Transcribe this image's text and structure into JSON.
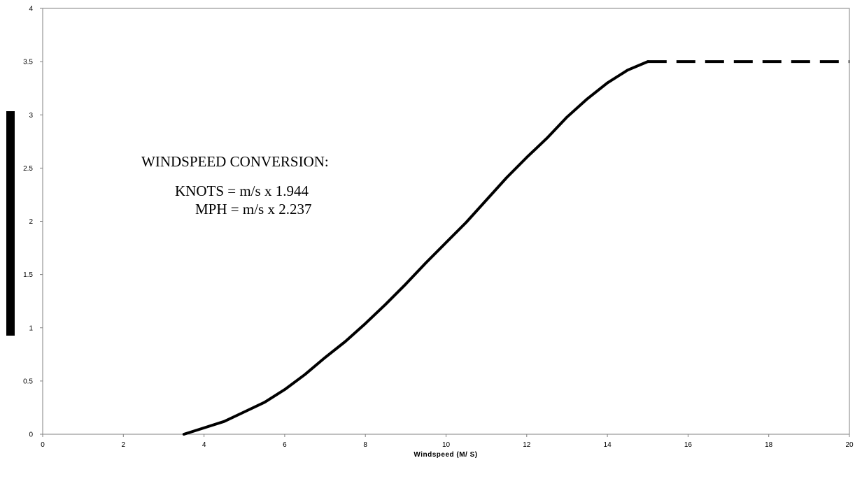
{
  "chart_data": {
    "type": "line",
    "title": "",
    "xlabel": "Windspeed (M/ S)",
    "ylabel": "",
    "xlim": [
      0,
      20
    ],
    "ylim": [
      0,
      4
    ],
    "x_ticks": [
      0,
      2,
      4,
      6,
      8,
      10,
      12,
      14,
      16,
      18,
      20
    ],
    "y_ticks": [
      0,
      0.5,
      1,
      1.5,
      2,
      2.5,
      3,
      3.5,
      4
    ],
    "y_tick_labels": [
      "0",
      "0.5",
      "1",
      "1.5",
      "2",
      "2.5",
      "3",
      "3.5",
      "4"
    ],
    "grid": false,
    "series": [
      {
        "style": "solid",
        "color": "#000000",
        "x": [
          3.5,
          4,
          4.5,
          5,
          5.5,
          6,
          6.5,
          7,
          7.5,
          8,
          8.5,
          9,
          9.5,
          10,
          10.5,
          11,
          11.5,
          12,
          12.5,
          13,
          13.5,
          14,
          14.5,
          15
        ],
        "y": [
          0,
          0.06,
          0.12,
          0.21,
          0.3,
          0.42,
          0.56,
          0.72,
          0.87,
          1.04,
          1.22,
          1.41,
          1.61,
          1.8,
          1.99,
          2.2,
          2.41,
          2.6,
          2.78,
          2.98,
          3.15,
          3.3,
          3.42,
          3.5
        ]
      },
      {
        "style": "dashed",
        "color": "#000000",
        "x": [
          15,
          20
        ],
        "y": [
          3.5,
          3.5
        ]
      }
    ],
    "annotations": {
      "heading": "WINDSPEED CONVERSION:",
      "line1": "KNOTS = m/s x 1.944",
      "line2": "MPH = m/s x 2.237"
    }
  }
}
